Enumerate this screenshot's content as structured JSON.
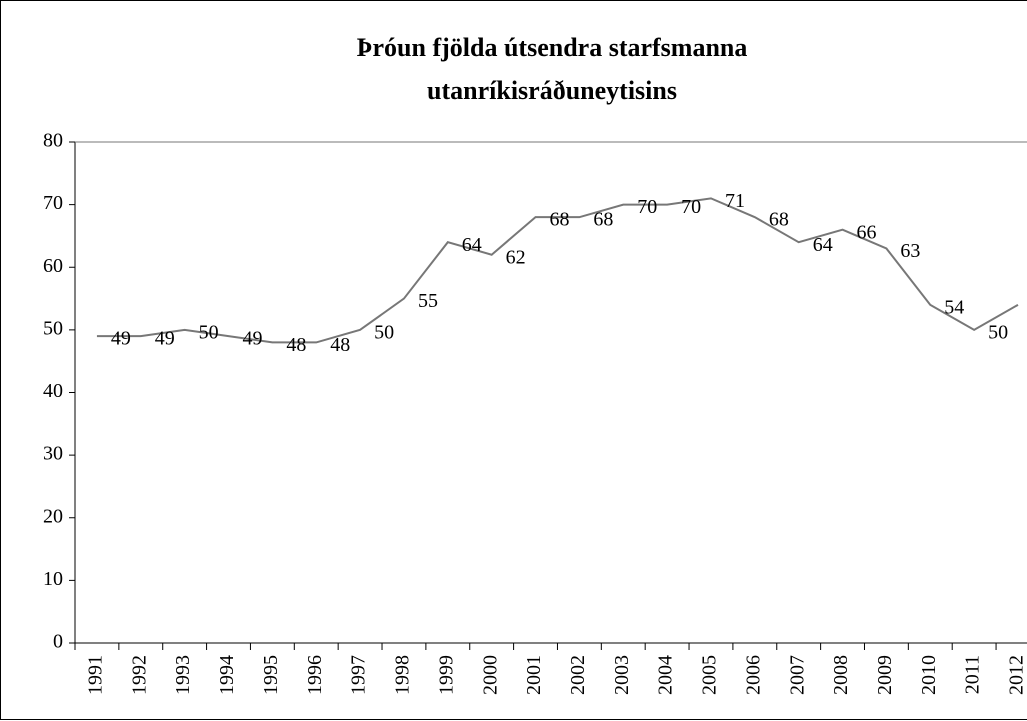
{
  "chart_data": {
    "type": "line",
    "title": [
      "Þróun fjölda útsendra starfsmanna",
      "utanríkisráðuneytisins"
    ],
    "categories": [
      "1991",
      "1992",
      "1993",
      "1994",
      "1995",
      "1996",
      "1997",
      "1998",
      "1999",
      "2000",
      "2001",
      "2002",
      "2003",
      "2004",
      "2005",
      "2006",
      "2007",
      "2008",
      "2009",
      "2010",
      "2011",
      "2012"
    ],
    "series": [
      {
        "color": "#777777",
        "values": [
          49,
          49,
          50,
          49,
          48,
          48,
          50,
          55,
          64,
          62,
          68,
          68,
          70,
          70,
          71,
          68,
          64,
          66,
          63,
          54,
          50,
          54
        ]
      }
    ],
    "ylim": [
      0,
      80
    ],
    "yticks": [
      0,
      10,
      20,
      30,
      40,
      50,
      60,
      70,
      80
    ],
    "grid": false
  }
}
